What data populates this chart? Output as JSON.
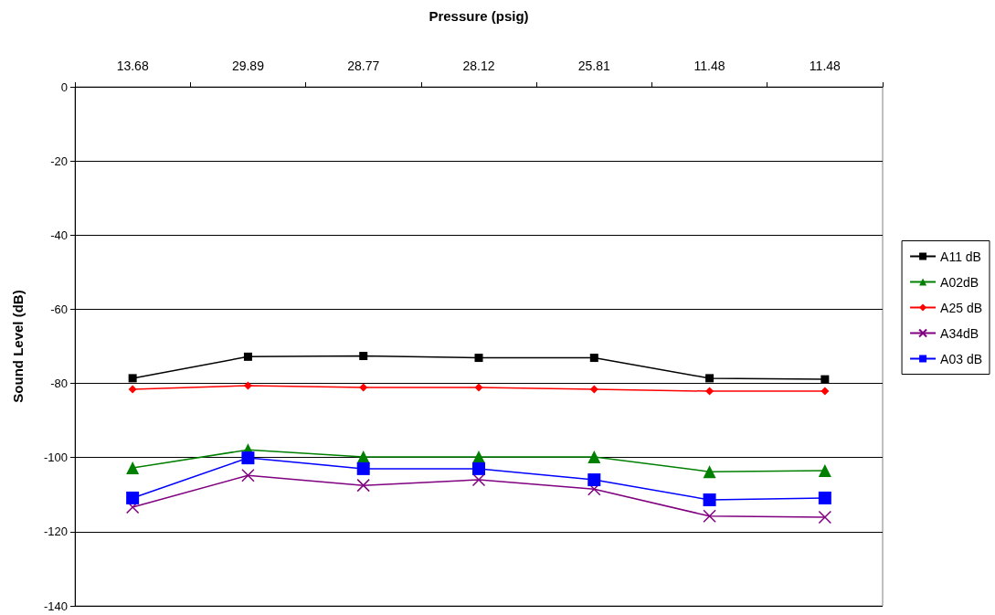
{
  "chart_data": {
    "type": "line",
    "xlabel": "Pressure (psig)",
    "ylabel": "Sound Level (dB)",
    "categories": [
      "13.68",
      "29.89",
      "28.77",
      "28.12",
      "25.81",
      "11.48",
      "11.48"
    ],
    "series": [
      {
        "name": "A11 dB",
        "color": "#000000",
        "marker": "square",
        "values": [
          -78.6,
          -72.8,
          -72.6,
          -73.1,
          -73.1,
          -78.6,
          -78.9
        ]
      },
      {
        "name": "A02dB",
        "color": "#008000",
        "marker": "triangle",
        "values": [
          -102.8,
          -97.9,
          -99.8,
          -99.8,
          -99.8,
          -103.8,
          -103.5
        ]
      },
      {
        "name": "A25 dB",
        "color": "#ff0000",
        "marker": "diamond",
        "values": [
          -81.6,
          -80.6,
          -81.1,
          -81.1,
          -81.6,
          -82.1,
          -82.1
        ]
      },
      {
        "name": "A34dB",
        "color": "#800080",
        "marker": "cross",
        "values": [
          -113.4,
          -104.8,
          -107.5,
          -106.0,
          -108.5,
          -115.8,
          -116.1
        ]
      },
      {
        "name": "A03 dB",
        "color": "#0000ff",
        "marker": "square",
        "values": [
          -110.9,
          -100.1,
          -103.0,
          -103.0,
          -106.0,
          -111.4,
          -110.9
        ]
      }
    ],
    "ylim": [
      -140,
      0
    ],
    "yticks": [
      -140,
      -120,
      -100,
      -80,
      -60,
      -40,
      -20,
      0
    ],
    "grid": "y",
    "legend": "right",
    "line_style": "solid"
  }
}
